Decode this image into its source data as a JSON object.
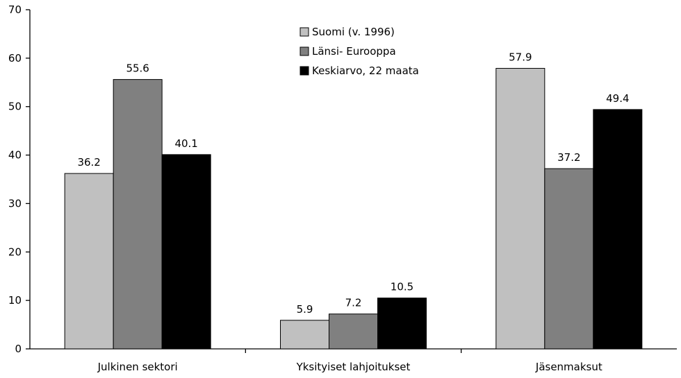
{
  "chart_data": {
    "type": "bar",
    "categories": [
      "Julkinen sektori",
      "Yksityiset lahjoitukset",
      "Jäsenmaksut"
    ],
    "series": [
      {
        "name": "Suomi (v. 1996)",
        "values": [
          36.2,
          5.9,
          57.9
        ],
        "color": "#c0c0c0"
      },
      {
        "name": "Länsi- Eurooppa",
        "values": [
          55.6,
          7.2,
          37.2
        ],
        "color": "#808080"
      },
      {
        "name": "Keskiarvo, 22 maata",
        "values": [
          40.1,
          10.5,
          49.4
        ],
        "color": "#000000"
      }
    ],
    "ylim": [
      0,
      70
    ],
    "yticks": [
      0,
      10,
      20,
      30,
      40,
      50,
      60,
      70
    ],
    "value_labels": [
      [
        "36.2",
        "5.9",
        "57.9"
      ],
      [
        "55.6",
        "7.2",
        "37.2"
      ],
      [
        "40.1",
        "10.5",
        "49.4"
      ]
    ],
    "grid": false,
    "legend_position": "top-center",
    "title": "",
    "xlabel": "",
    "ylabel": ""
  }
}
